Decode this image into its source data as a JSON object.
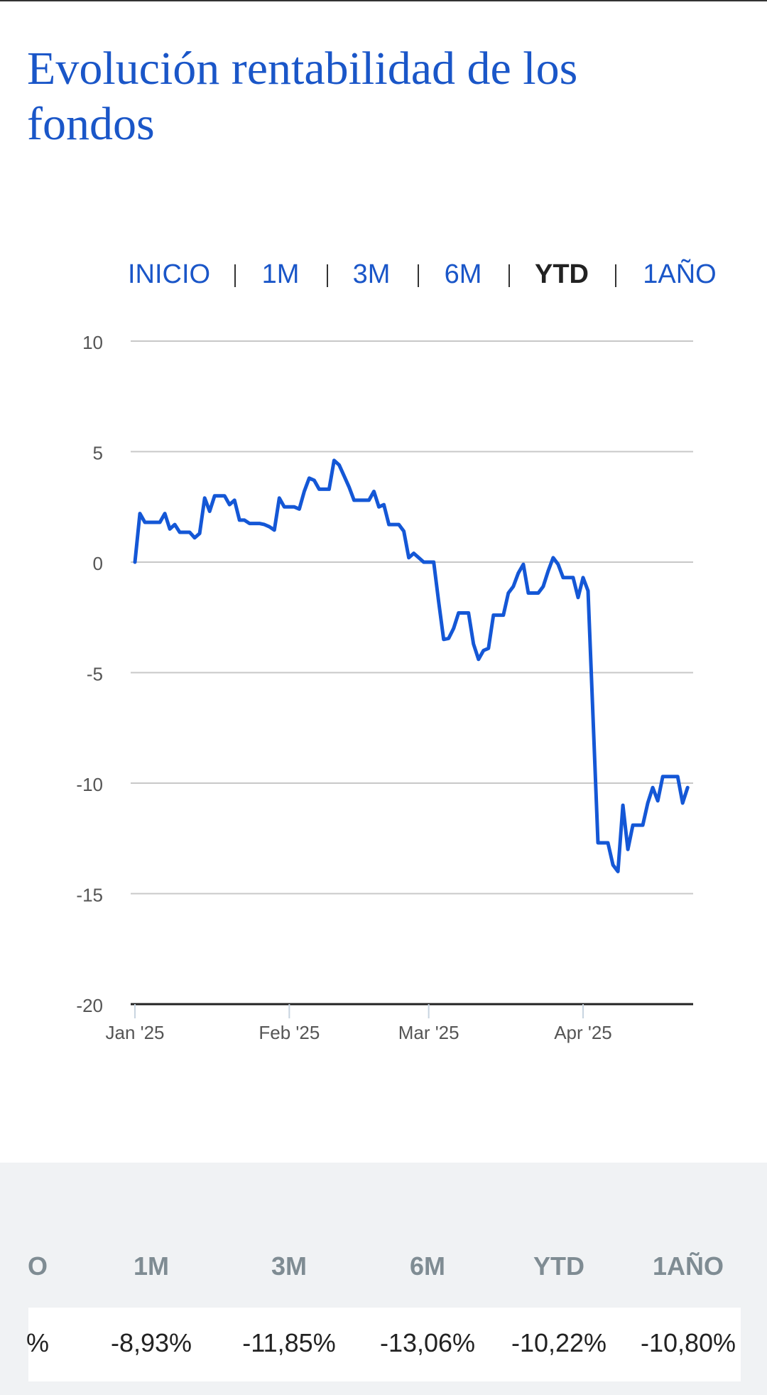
{
  "title": "Evolución rentabilidad de los fondos",
  "tabs": [
    {
      "label": "INICIO",
      "active": false
    },
    {
      "label": "1M",
      "active": false
    },
    {
      "label": "3M",
      "active": false
    },
    {
      "label": "6M",
      "active": false
    },
    {
      "label": "YTD",
      "active": true
    },
    {
      "label": "1AÑO",
      "active": false
    }
  ],
  "chart_data": {
    "type": "line",
    "categories": [
      "Jan '25",
      null,
      null,
      null,
      null,
      null,
      null,
      null,
      null,
      null,
      null,
      null,
      null,
      null,
      null,
      null,
      null,
      null,
      null,
      null,
      null,
      null,
      null,
      null,
      null,
      null,
      null,
      null,
      null,
      null,
      null,
      "Feb '25",
      null,
      null,
      null,
      null,
      null,
      null,
      null,
      null,
      null,
      null,
      null,
      null,
      null,
      null,
      null,
      null,
      null,
      null,
      null,
      null,
      null,
      null,
      null,
      null,
      null,
      null,
      null,
      "Mar '25",
      null,
      null,
      null,
      null,
      null,
      null,
      null,
      null,
      null,
      null,
      null,
      null,
      null,
      null,
      null,
      null,
      null,
      null,
      null,
      null,
      null,
      null,
      null,
      null,
      null,
      null,
      null,
      null,
      null,
      null,
      "Apr '25",
      null,
      null,
      null,
      null,
      null,
      null,
      null,
      null,
      null,
      null,
      null,
      null,
      null,
      null,
      null,
      null,
      null,
      null,
      null,
      null,
      null
    ],
    "series": [
      {
        "color": "#1457d6",
        "values": [
          0,
          2.2,
          1.8,
          1.8,
          1.8,
          1.8,
          2.2,
          1.5,
          1.7,
          1.35,
          1.35,
          1.35,
          1.1,
          1.3,
          2.9,
          2.3,
          3.0,
          3.0,
          3.0,
          2.6,
          2.8,
          1.9,
          1.9,
          1.75,
          1.75,
          1.75,
          1.7,
          1.6,
          1.45,
          2.9,
          2.5,
          2.5,
          2.5,
          2.4,
          3.2,
          3.8,
          3.7,
          3.3,
          3.3,
          3.3,
          4.6,
          4.4,
          3.9,
          3.4,
          2.8,
          2.8,
          2.8,
          2.8,
          3.2,
          2.5,
          2.6,
          1.7,
          1.7,
          1.7,
          1.4,
          0.2,
          0.4,
          0.2,
          0,
          0,
          0,
          -1.8,
          -3.5,
          -3.45,
          -3.0,
          -2.3,
          -2.3,
          -2.3,
          -3.7,
          -4.4,
          -4.0,
          -3.9,
          -2.4,
          -2.4,
          -2.4,
          -1.4,
          -1.1,
          -0.5,
          -0.1,
          -1.4,
          -1.4,
          -1.4,
          -1.1,
          -0.4,
          0.2,
          -0.1,
          -0.7,
          -0.7,
          -0.7,
          -1.6,
          -0.7,
          -1.3,
          -7.0,
          -12.7,
          -12.7,
          -12.7,
          -13.7,
          -14.0,
          -11.0,
          -13.0,
          -11.9,
          -11.9,
          -11.9,
          -10.9,
          -10.2,
          -10.8,
          -9.7,
          -9.7,
          -9.7,
          -9.7,
          -10.9,
          -10.2
        ]
      }
    ],
    "ylim": [
      -20,
      10
    ],
    "yticks": [
      -20,
      -15,
      -10,
      -5,
      0,
      5,
      10
    ],
    "grid": true
  },
  "table": {
    "headers": [
      "O",
      "1M",
      "3M",
      "6M",
      "YTD",
      "1AÑO"
    ],
    "rows": [
      [
        "%",
        "-8,93%",
        "-11,85%",
        "-13,06%",
        "-10,22%",
        "-10,80%"
      ]
    ]
  }
}
